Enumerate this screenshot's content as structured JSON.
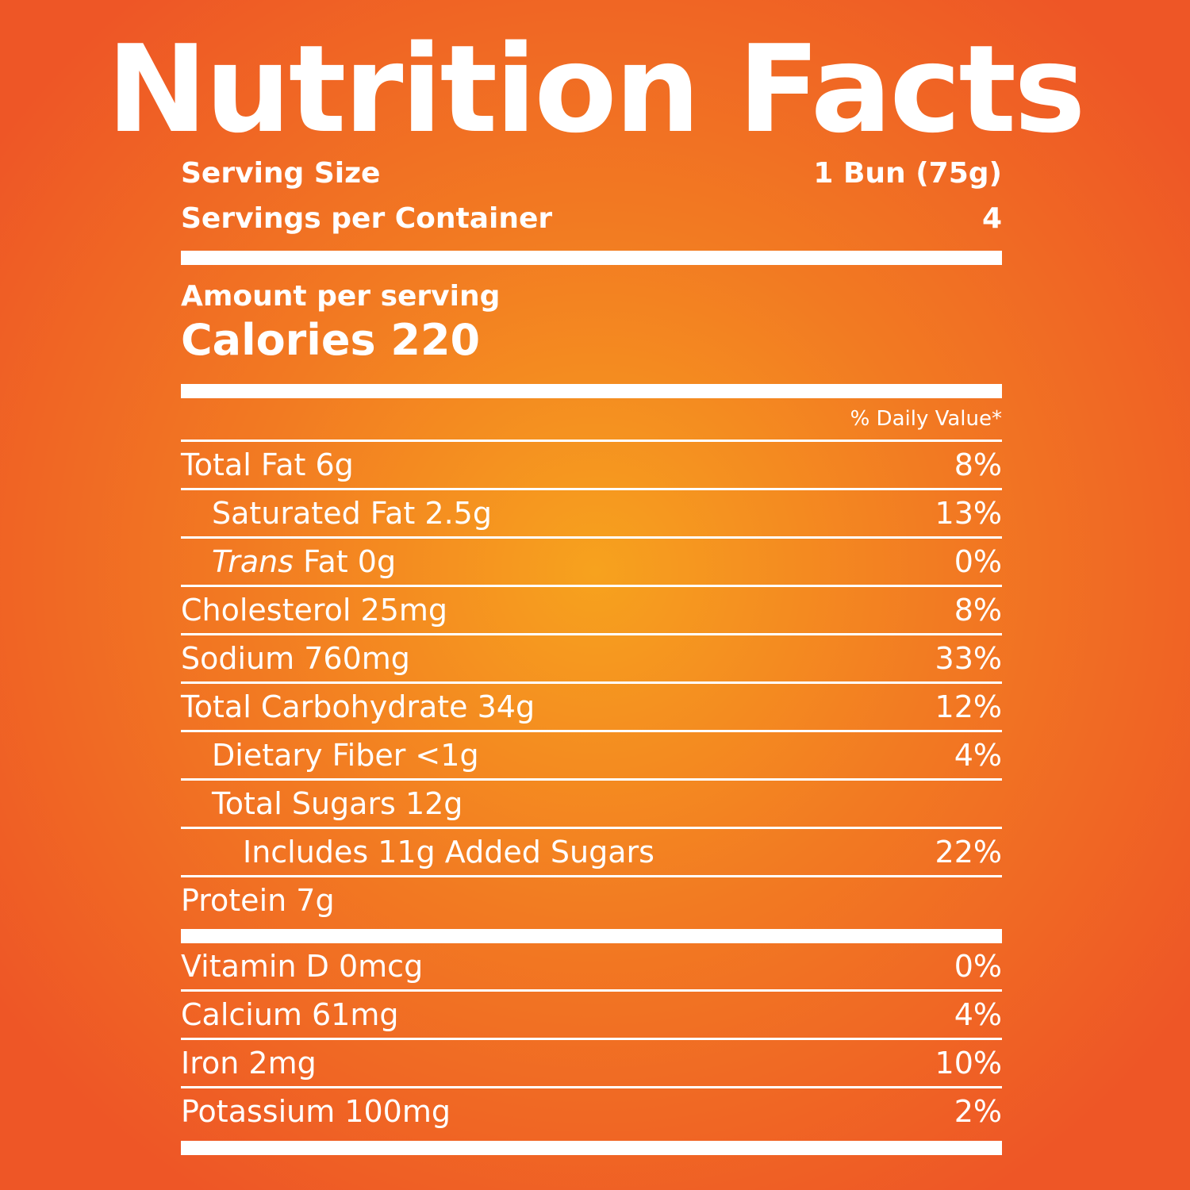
{
  "title": "Nutrition Facts",
  "serving_size": {
    "label": "Serving Size",
    "value": "1 Bun (75g)"
  },
  "servings_per_container": {
    "label": "Servings per Container",
    "value": "4"
  },
  "amount_per_serving": "Amount per serving",
  "calories": "Calories 220",
  "daily_value_header": "% Daily Value*",
  "nutrients": [
    {
      "label": "Total Fat 6g",
      "dv": "8%"
    },
    {
      "label": "Saturated Fat 2.5g",
      "dv": "13%"
    },
    {
      "label_italic": "Trans",
      "label": " Fat 0g",
      "dv": "0%"
    },
    {
      "label": "Cholesterol 25mg",
      "dv": "8%"
    },
    {
      "label": "Sodium 760mg",
      "dv": "33%"
    },
    {
      "label": "Total Carbohydrate 34g",
      "dv": "12%"
    },
    {
      "label": "Dietary Fiber <1g",
      "dv": "4%"
    },
    {
      "label": "Total Sugars 12g",
      "dv": ""
    },
    {
      "label": "Includes 11g Added Sugars",
      "dv": "22%"
    },
    {
      "label": "Protein 7g",
      "dv": ""
    }
  ],
  "vitamins": [
    {
      "label": "Vitamin D 0mcg",
      "dv": "0%"
    },
    {
      "label": "Calcium 61mg",
      "dv": "4%"
    },
    {
      "label": "Iron 2mg",
      "dv": "10%"
    },
    {
      "label": "Potassium 100mg",
      "dv": "2%"
    }
  ],
  "colors": {
    "text": "#ffffff",
    "center": "#f7a21e",
    "edge": "#ee5626"
  }
}
